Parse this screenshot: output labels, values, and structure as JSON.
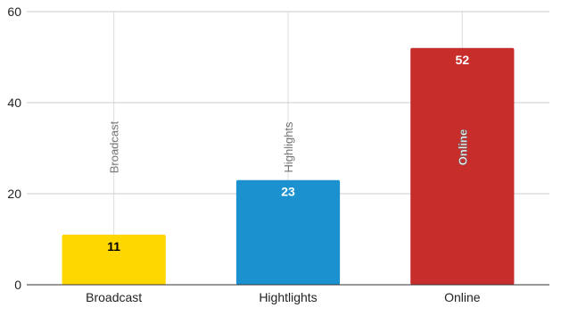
{
  "chart_data": {
    "type": "bar",
    "title": "",
    "xlabel": "",
    "ylabel": "",
    "categories": [
      "Broadcast",
      "Hightlights",
      "Online"
    ],
    "values": [
      11,
      23,
      52
    ],
    "data_labels": [
      "11",
      "23",
      "52"
    ],
    "bar_annotations": [
      "Broadcast",
      "Highlights",
      "Online"
    ],
    "bar_colors": [
      "#ffd700",
      "#1b91cf",
      "#c62d2b"
    ],
    "data_label_colors": [
      "#000000",
      "#ffffff",
      "#ffffff"
    ],
    "annotation_colors": [
      "#777777",
      "#777777",
      "#ffffff"
    ],
    "ylim": [
      0,
      60
    ],
    "yticks": [
      "0",
      "20",
      "40",
      "60"
    ],
    "grid": true,
    "legend": "none"
  }
}
